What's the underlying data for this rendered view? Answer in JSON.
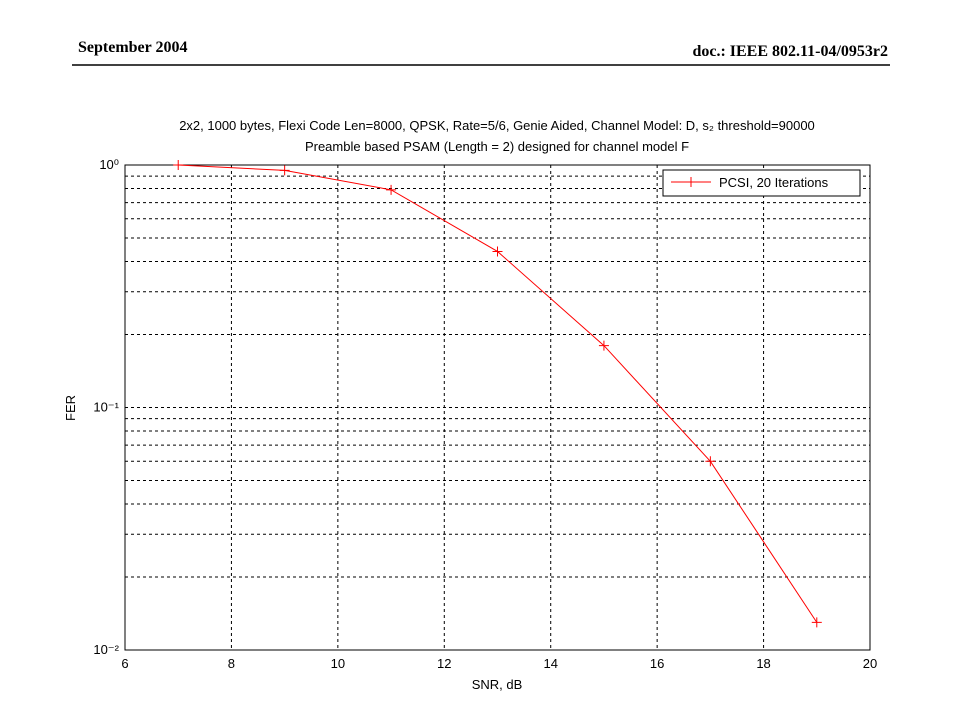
{
  "header": {
    "date": "September 2004",
    "doc": "doc.: IEEE 802.11-04/0953r2"
  },
  "chart_data": {
    "type": "line",
    "title": "2x2, 1000 bytes, Flexi Code Len=8000, QPSK, Rate=5/6, Genie Aided, Channel Model: D, s₂ threshold=90000",
    "subtitle": "Preamble based PSAM (Length = 2) designed for channel model F",
    "x_label": "SNR, dB",
    "y_label": "FER",
    "x": [
      7,
      9,
      11,
      13,
      15,
      17,
      19
    ],
    "series": [
      {
        "name": "PCSI, 20 Iterations",
        "color": "#ff0000",
        "marker": "+",
        "values": [
          1.0,
          0.95,
          0.79,
          0.44,
          0.18,
          0.06,
          0.013
        ]
      }
    ],
    "xlim": [
      6,
      20
    ],
    "xticks": [
      6,
      8,
      10,
      12,
      14,
      16,
      18,
      20
    ],
    "ylim": [
      0.01,
      1
    ],
    "log_y": true,
    "yticks": [
      {
        "value": 0.01,
        "label": "10⁻²"
      },
      {
        "value": 0.1,
        "label": "10⁻¹"
      },
      {
        "value": 1,
        "label": "10⁰"
      }
    ],
    "yminorticks": [
      0.02,
      0.03,
      0.04,
      0.05,
      0.06,
      0.07,
      0.08,
      0.09,
      0.2,
      0.3,
      0.4,
      0.5,
      0.6,
      0.7,
      0.8,
      0.9
    ],
    "grid": true,
    "legend": "upper right"
  }
}
